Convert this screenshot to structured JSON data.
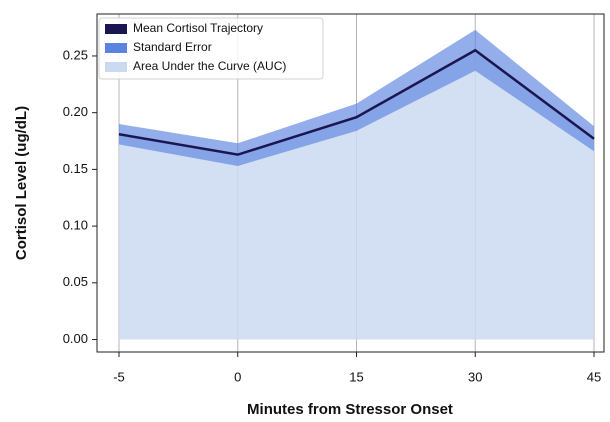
{
  "chart_data": {
    "type": "line",
    "xlabel": "Minutes from Stressor Onset",
    "ylabel": "Cortisol Level (ug/dL)",
    "categories": [
      "-5",
      "0",
      "15",
      "30",
      "45"
    ],
    "series": [
      {
        "name": "Mean Cortisol Trajectory",
        "color": "#1c1650",
        "values": [
          0.181,
          0.163,
          0.196,
          0.255,
          0.177
        ]
      },
      {
        "name": "Standard Error",
        "color": "#5b83e0",
        "values": [
          0.009,
          0.01,
          0.012,
          0.018,
          0.011
        ]
      },
      {
        "name": "Area Under the Curve (AUC)",
        "color": "#cbdaf1"
      }
    ],
    "ylim": [
      -0.011,
      0.287
    ],
    "yticks": [
      {
        "value": 0,
        "label": "0.00"
      },
      {
        "value": 0.05,
        "label": "0.05"
      },
      {
        "value": 0.1,
        "label": "0.10"
      },
      {
        "value": 0.15,
        "label": "0.15"
      },
      {
        "value": 0.2,
        "label": "0.20"
      },
      {
        "value": 0.25,
        "label": "0.25"
      }
    ],
    "grid": "x",
    "legend": "upper left"
  }
}
